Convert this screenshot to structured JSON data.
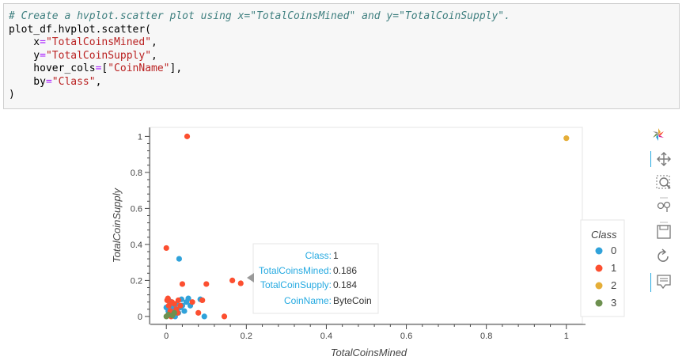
{
  "code": {
    "lines": [
      [
        {
          "t": "c",
          "s": "# Create a hvplot.scatter plot using x=\"TotalCoinsMined\" and y=\"TotalCoinSupply\"."
        }
      ],
      [
        {
          "t": "p",
          "s": "plot_df.hvplot.scatter("
        }
      ],
      [
        {
          "t": "p",
          "s": "    x"
        },
        {
          "t": "o",
          "s": "="
        },
        {
          "t": "s",
          "s": "\"TotalCoinsMined\""
        },
        {
          "t": "p",
          "s": ","
        }
      ],
      [
        {
          "t": "p",
          "s": "    y"
        },
        {
          "t": "o",
          "s": "="
        },
        {
          "t": "s",
          "s": "\"TotalCoinSupply\""
        },
        {
          "t": "p",
          "s": ","
        }
      ],
      [
        {
          "t": "p",
          "s": "    hover_cols"
        },
        {
          "t": "o",
          "s": "="
        },
        {
          "t": "p",
          "s": "["
        },
        {
          "t": "s",
          "s": "\"CoinName\""
        },
        {
          "t": "p",
          "s": "],"
        }
      ],
      [
        {
          "t": "p",
          "s": "    by"
        },
        {
          "t": "o",
          "s": "="
        },
        {
          "t": "s",
          "s": "\"Class\""
        },
        {
          "t": "p",
          "s": ","
        }
      ],
      [
        {
          "t": "p",
          "s": ")"
        }
      ]
    ]
  },
  "colors": {
    "class_0": "#30a2da",
    "class_1": "#fc4f30",
    "class_2": "#e5ae38",
    "class_3": "#6d904f",
    "tooltip_key": "#26aae1",
    "toolbar_active": "#26aae1"
  },
  "chart_data": {
    "type": "scatter",
    "xlabel": "TotalCoinsMined",
    "ylabel": "TotalCoinSupply",
    "xlim": [
      -0.04,
      1.04
    ],
    "ylim": [
      -0.04,
      1.05
    ],
    "x_ticks": [
      "0",
      "0.2",
      "0.4",
      "0.6",
      "0.8",
      "1"
    ],
    "y_ticks": [
      "0",
      "0.2",
      "0.4",
      "0.6",
      "0.8",
      "1"
    ],
    "legend_title": "Class",
    "legend_position": "right",
    "grid": false,
    "series": [
      {
        "name": "0",
        "points": [
          [
            0.0,
            0.05
          ],
          [
            0.005,
            0.03
          ],
          [
            0.01,
            0.06
          ],
          [
            0.012,
            0.015
          ],
          [
            0.018,
            0.04
          ],
          [
            0.022,
            0.0
          ],
          [
            0.025,
            0.07
          ],
          [
            0.03,
            0.02
          ],
          [
            0.032,
            0.32
          ],
          [
            0.035,
            0.05
          ],
          [
            0.038,
            0.095
          ],
          [
            0.04,
            0.06
          ],
          [
            0.045,
            0.03
          ],
          [
            0.05,
            0.08
          ],
          [
            0.055,
            0.1
          ],
          [
            0.06,
            0.06
          ],
          [
            0.008,
            0.085
          ],
          [
            0.015,
            0.01
          ],
          [
            0.02,
            0.055
          ],
          [
            0.085,
            0.095
          ],
          [
            0.095,
            0.0
          ]
        ]
      },
      {
        "name": "1",
        "points": [
          [
            0.0,
            0.38
          ],
          [
            0.002,
            0.09
          ],
          [
            0.004,
            0.1
          ],
          [
            0.006,
            0.06
          ],
          [
            0.01,
            0.03
          ],
          [
            0.014,
            0.08
          ],
          [
            0.02,
            0.07
          ],
          [
            0.025,
            0.04
          ],
          [
            0.03,
            0.09
          ],
          [
            0.035,
            0.06
          ],
          [
            0.04,
            0.18
          ],
          [
            0.052,
            1.0
          ],
          [
            0.065,
            0.08
          ],
          [
            0.08,
            0.02
          ],
          [
            0.09,
            0.09
          ],
          [
            0.1,
            0.18
          ],
          [
            0.145,
            0.0
          ],
          [
            0.165,
            0.2
          ],
          [
            0.186,
            0.184
          ],
          [
            0.012,
            0.0
          ],
          [
            0.028,
            0.02
          ]
        ]
      },
      {
        "name": "2",
        "points": [
          [
            1.0,
            0.99
          ]
        ]
      },
      {
        "name": "3",
        "points": [
          [
            0.0,
            0.0
          ],
          [
            0.005,
            0.01
          ],
          [
            0.015,
            0.005
          ],
          [
            0.02,
            0.02
          ]
        ]
      }
    ],
    "tooltip": {
      "Class": "1",
      "TotalCoinsMined": "0.186",
      "TotalCoinSupply": "0.184",
      "CoinName": "ByteCoin"
    }
  },
  "toolbar": {
    "tools": [
      "bokeh-logo-icon",
      "pan-icon",
      "box-zoom-icon",
      "wheel-zoom-icon",
      "save-icon",
      "reset-icon",
      "hover-icon"
    ]
  }
}
